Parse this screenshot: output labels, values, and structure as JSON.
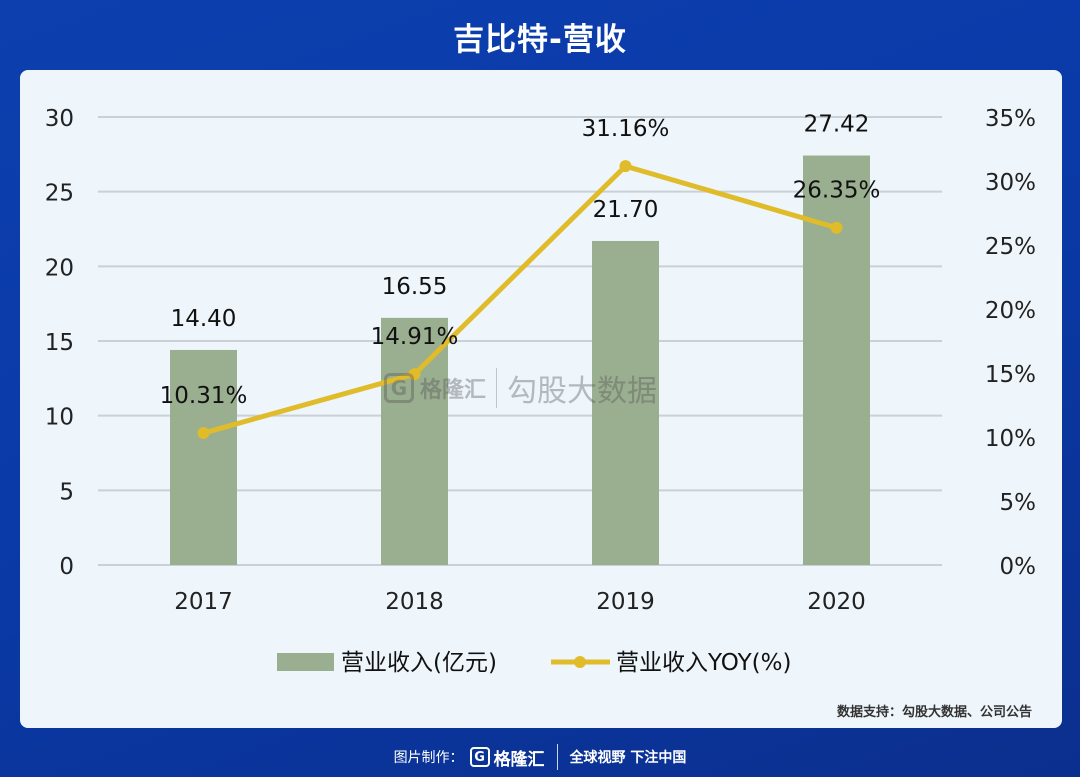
{
  "header": {
    "title": "吉比特-营收"
  },
  "chart_data": {
    "type": "bar",
    "categories": [
      "2017",
      "2018",
      "2019",
      "2020"
    ],
    "series": [
      {
        "name": "营业收入(亿元)",
        "type": "bar",
        "axis": "left",
        "values": [
          14.4,
          16.55,
          21.7,
          27.42
        ],
        "labels": [
          "14.40",
          "16.55",
          "21.70",
          "27.42"
        ],
        "color": "#9aae90"
      },
      {
        "name": "营业收入YOY(%)",
        "type": "line",
        "axis": "right",
        "values": [
          10.31,
          14.91,
          31.16,
          26.35
        ],
        "labels": [
          "10.31%",
          "14.91%",
          "31.16%",
          "26.35%"
        ],
        "color": "#e0bb2a"
      }
    ],
    "y_left": {
      "min": 0,
      "max": 30,
      "ticks": [
        "0",
        "5",
        "10",
        "15",
        "20",
        "25",
        "30"
      ]
    },
    "y_right": {
      "min": 0,
      "max": 35,
      "ticks": [
        "0%",
        "5%",
        "10%",
        "15%",
        "20%",
        "25%",
        "30%",
        "35%"
      ]
    },
    "grid": true,
    "legend": "bottom"
  },
  "watermark": {
    "logo": "G",
    "brand": "格隆汇",
    "text": "勾股大数据"
  },
  "source": "数据支持：勾股大数据、公司公告",
  "footer": {
    "prefix": "图片制作：",
    "logo": "G",
    "brand": "格隆汇",
    "slogan": "全球视野 下注中国"
  }
}
